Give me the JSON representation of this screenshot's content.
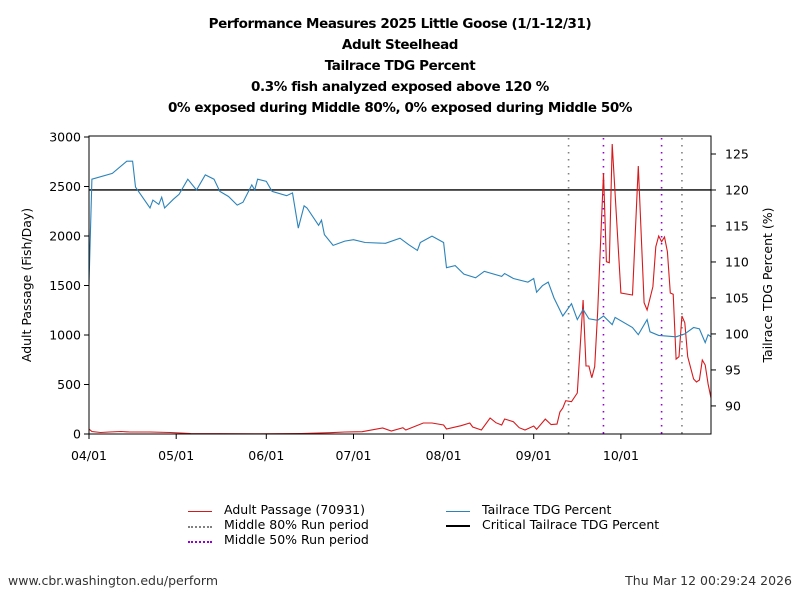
{
  "titles": [
    "Performance Measures 2025 Little Goose (1/1-12/31)",
    "Adult Steelhead",
    "Tailrace TDG Percent",
    "0.3% fish analyzed exposed above 120 %",
    "0% exposed during Middle 80%, 0% exposed during Middle 50%"
  ],
  "footer": {
    "url": "www.cbr.washington.edu/perform",
    "timestamp": "Thu Mar 12 00:29:24 2026"
  },
  "chart_data": {
    "type": "line",
    "xlabel": "",
    "ylabel": "Adult Passage (Fish/Day)",
    "y2label": "Tailrace TDG Percent (%)",
    "xlim": [
      "2025-04-01",
      "2025-11-01"
    ],
    "ylim": [
      0,
      3010
    ],
    "y2lim": [
      86.1,
      127.5
    ],
    "xticks": [
      {
        "date": "2025-04-01",
        "label": "04/01"
      },
      {
        "date": "2025-05-01",
        "label": "05/01"
      },
      {
        "date": "2025-06-01",
        "label": "06/01"
      },
      {
        "date": "2025-07-01",
        "label": "07/01"
      },
      {
        "date": "2025-08-01",
        "label": "08/01"
      },
      {
        "date": "2025-09-01",
        "label": "09/01"
      },
      {
        "date": "2025-10-01",
        "label": "10/01"
      }
    ],
    "yticks": [
      "0",
      "500",
      "1000",
      "1500",
      "2000",
      "2500",
      "3000"
    ],
    "y2ticks": [
      "90",
      "95",
      "100",
      "105",
      "110",
      "115",
      "120",
      "125"
    ],
    "grid": false,
    "legend_position": "bottom",
    "colors": {
      "passage": "#d7191c",
      "tdg": "#2b83ba",
      "critical": "#000000",
      "middle80": "#808080",
      "middle50": "#9400d3"
    },
    "series": [
      {
        "name": "Adult Passage (70931)",
        "axis": "left",
        "points": [
          [
            "2025-04-01",
            50
          ],
          [
            "2025-04-02",
            25
          ],
          [
            "2025-04-05",
            15
          ],
          [
            "2025-04-08",
            20
          ],
          [
            "2025-04-12",
            25
          ],
          [
            "2025-04-15",
            20
          ],
          [
            "2025-04-22",
            20
          ],
          [
            "2025-04-29",
            15
          ],
          [
            "2025-05-06",
            5
          ],
          [
            "2025-05-16",
            3
          ],
          [
            "2025-05-30",
            2
          ],
          [
            "2025-06-13",
            5
          ],
          [
            "2025-06-23",
            13
          ],
          [
            "2025-06-28",
            20
          ],
          [
            "2025-07-04",
            23
          ],
          [
            "2025-07-11",
            61
          ],
          [
            "2025-07-14",
            30
          ],
          [
            "2025-07-18",
            64
          ],
          [
            "2025-07-19",
            40
          ],
          [
            "2025-07-25",
            111
          ],
          [
            "2025-07-28",
            111
          ],
          [
            "2025-08-01",
            91
          ],
          [
            "2025-08-02",
            51
          ],
          [
            "2025-08-07",
            84
          ],
          [
            "2025-08-10",
            111
          ],
          [
            "2025-08-11",
            71
          ],
          [
            "2025-08-14",
            40
          ],
          [
            "2025-08-17",
            162
          ],
          [
            "2025-08-19",
            114
          ],
          [
            "2025-08-21",
            91
          ],
          [
            "2025-08-22",
            152
          ],
          [
            "2025-08-25",
            124
          ],
          [
            "2025-08-27",
            64
          ],
          [
            "2025-08-29",
            40
          ],
          [
            "2025-09-01",
            81
          ],
          [
            "2025-09-02",
            47
          ],
          [
            "2025-09-05",
            150
          ],
          [
            "2025-09-07",
            95
          ],
          [
            "2025-09-09",
            100
          ],
          [
            "2025-09-10",
            222
          ],
          [
            "2025-09-11",
            263
          ],
          [
            "2025-09-12",
            336
          ],
          [
            "2025-09-14",
            326
          ],
          [
            "2025-09-16",
            414
          ],
          [
            "2025-09-18",
            1353
          ],
          [
            "2025-09-19",
            687
          ],
          [
            "2025-09-20",
            687
          ],
          [
            "2025-09-21",
            569
          ],
          [
            "2025-09-22",
            680
          ],
          [
            "2025-09-23",
            1222
          ],
          [
            "2025-09-25",
            2636
          ],
          [
            "2025-09-26",
            1740
          ],
          [
            "2025-09-27",
            1730
          ],
          [
            "2025-09-28",
            2929
          ],
          [
            "2025-10-01",
            1424
          ],
          [
            "2025-10-05",
            1404
          ],
          [
            "2025-10-07",
            2707
          ],
          [
            "2025-10-09",
            1326
          ],
          [
            "2025-10-10",
            1252
          ],
          [
            "2025-10-12",
            1488
          ],
          [
            "2025-10-13",
            1892
          ],
          [
            "2025-10-14",
            2000
          ],
          [
            "2025-10-15",
            1942
          ],
          [
            "2025-10-16",
            1990
          ],
          [
            "2025-10-17",
            1841
          ],
          [
            "2025-10-18",
            1424
          ],
          [
            "2025-10-19",
            1411
          ],
          [
            "2025-10-20",
            757
          ],
          [
            "2025-10-21",
            781
          ],
          [
            "2025-10-22",
            1192
          ],
          [
            "2025-10-23",
            1124
          ],
          [
            "2025-10-24",
            781
          ],
          [
            "2025-10-26",
            556
          ],
          [
            "2025-10-27",
            525
          ],
          [
            "2025-10-28",
            545
          ],
          [
            "2025-10-29",
            747
          ],
          [
            "2025-10-30",
            697
          ],
          [
            "2025-10-31",
            505
          ],
          [
            "2025-11-01",
            364
          ]
        ]
      },
      {
        "name": "Tailrace TDG Percent",
        "axis": "right",
        "points": [
          [
            "2025-04-01",
            107
          ],
          [
            "2025-04-02",
            121.5
          ],
          [
            "2025-04-09",
            122.3
          ],
          [
            "2025-04-14",
            124
          ],
          [
            "2025-04-16",
            124
          ],
          [
            "2025-04-17",
            120.4
          ],
          [
            "2025-04-22",
            117.5
          ],
          [
            "2025-04-23",
            118.6
          ],
          [
            "2025-04-25",
            118
          ],
          [
            "2025-04-26",
            119
          ],
          [
            "2025-04-27",
            117.5
          ],
          [
            "2025-04-30",
            118.7
          ],
          [
            "2025-05-02",
            119.4
          ],
          [
            "2025-05-05",
            121.5
          ],
          [
            "2025-05-08",
            120
          ],
          [
            "2025-05-11",
            122.1
          ],
          [
            "2025-05-14",
            121.5
          ],
          [
            "2025-05-16",
            119.8
          ],
          [
            "2025-05-19",
            119.1
          ],
          [
            "2025-05-22",
            117.9
          ],
          [
            "2025-05-24",
            118.3
          ],
          [
            "2025-05-27",
            120.7
          ],
          [
            "2025-05-28",
            120
          ],
          [
            "2025-05-29",
            121.5
          ],
          [
            "2025-06-01",
            121.2
          ],
          [
            "2025-06-03",
            119.8
          ],
          [
            "2025-06-08",
            119.2
          ],
          [
            "2025-06-10",
            119.6
          ],
          [
            "2025-06-12",
            114.7
          ],
          [
            "2025-06-14",
            117.8
          ],
          [
            "2025-06-15",
            117.5
          ],
          [
            "2025-06-19",
            115.1
          ],
          [
            "2025-06-20",
            115.8
          ],
          [
            "2025-06-21",
            113.8
          ],
          [
            "2025-06-24",
            112.3
          ],
          [
            "2025-06-28",
            112.9
          ],
          [
            "2025-07-01",
            113.1
          ],
          [
            "2025-07-05",
            112.7
          ],
          [
            "2025-07-12",
            112.6
          ],
          [
            "2025-07-17",
            113.3
          ],
          [
            "2025-07-20",
            112.4
          ],
          [
            "2025-07-23",
            111.6
          ],
          [
            "2025-07-24",
            112.7
          ],
          [
            "2025-07-28",
            113.6
          ],
          [
            "2025-08-01",
            112.7
          ],
          [
            "2025-08-02",
            109.2
          ],
          [
            "2025-08-05",
            109.5
          ],
          [
            "2025-08-08",
            108.3
          ],
          [
            "2025-08-12",
            107.8
          ],
          [
            "2025-08-15",
            108.7
          ],
          [
            "2025-08-21",
            108
          ],
          [
            "2025-08-22",
            108.4
          ],
          [
            "2025-08-25",
            107.7
          ],
          [
            "2025-08-30",
            107.2
          ],
          [
            "2025-09-01",
            107.7
          ],
          [
            "2025-09-02",
            105.8
          ],
          [
            "2025-09-04",
            106.7
          ],
          [
            "2025-09-06",
            107.2
          ],
          [
            "2025-09-08",
            105
          ],
          [
            "2025-09-11",
            102.5
          ],
          [
            "2025-09-14",
            104.2
          ],
          [
            "2025-09-16",
            102
          ],
          [
            "2025-09-18",
            103.4
          ],
          [
            "2025-09-20",
            102.1
          ],
          [
            "2025-09-23",
            101.9
          ],
          [
            "2025-09-25",
            102.5
          ],
          [
            "2025-09-28",
            101.3
          ],
          [
            "2025-09-29",
            102.3
          ],
          [
            "2025-10-05",
            100.9
          ],
          [
            "2025-10-07",
            99.9
          ],
          [
            "2025-10-10",
            102
          ],
          [
            "2025-10-11",
            100.3
          ],
          [
            "2025-10-14",
            99.8
          ],
          [
            "2025-10-20",
            99.6
          ],
          [
            "2025-10-23",
            100
          ],
          [
            "2025-10-26",
            100.9
          ],
          [
            "2025-10-28",
            100.7
          ],
          [
            "2025-10-30",
            98.8
          ],
          [
            "2025-10-31",
            99.9
          ],
          [
            "2025-11-01",
            99.6
          ]
        ]
      }
    ],
    "reference_lines": [
      {
        "name": "Critical Tailrace TDG Percent",
        "axis": "right",
        "value": 120
      }
    ],
    "period_markers": [
      {
        "name": "Middle 80% Run period",
        "dates": [
          "2025-09-13",
          "2025-10-22"
        ]
      },
      {
        "name": "Middle 50% Run period",
        "dates": [
          "2025-09-25",
          "2025-10-15"
        ]
      }
    ],
    "legend": [
      "Adult Passage (70931)",
      "Middle 80% Run period",
      "Middle 50% Run period",
      "Tailrace TDG Percent",
      "Critical Tailrace TDG Percent"
    ]
  }
}
